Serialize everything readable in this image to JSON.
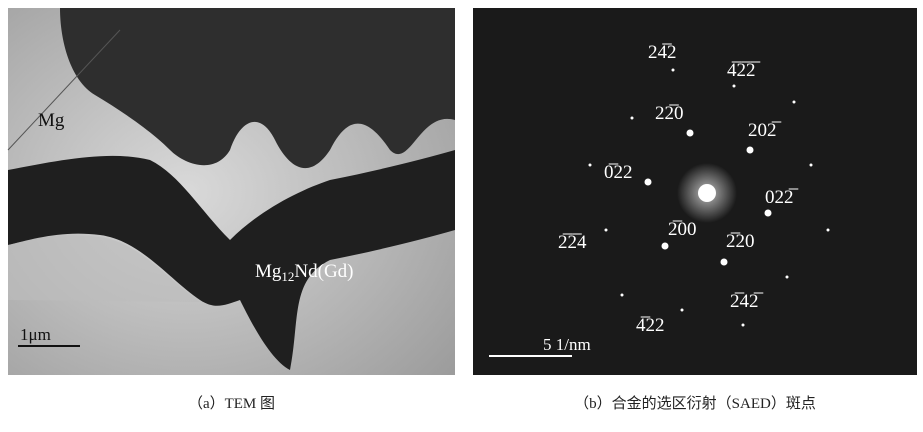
{
  "panel_a": {
    "labels": {
      "mg": "Mg",
      "phase": [
        "Mg",
        "12",
        "Nd(Gd)"
      ]
    },
    "scale_bar": "1μm",
    "caption": "（a）TEM 图"
  },
  "panel_b": {
    "indices": [
      "24̅2",
      "4̅2̅2̅",
      "22̅0",
      "202̅",
      "0̅22",
      "022̅",
      "2̅2̅4",
      "2̅00",
      "2̅20",
      "2̅42̅",
      "4̅22"
    ],
    "scale_bar": "5 1/nm",
    "caption": "（b）合金的选区衍射（SAED）斑点"
  }
}
